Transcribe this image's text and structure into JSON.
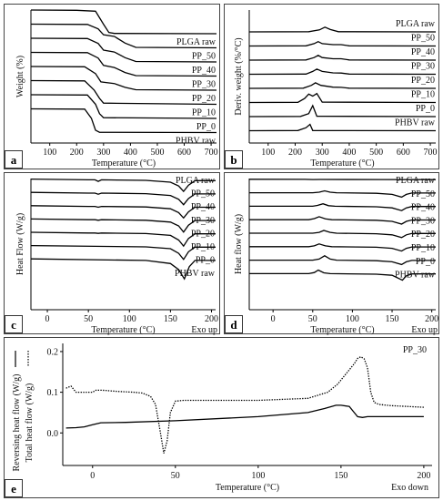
{
  "panels": {
    "a": "a",
    "b": "b",
    "c": "c",
    "d": "d",
    "e": "e"
  },
  "chart_data": [
    {
      "id": "a",
      "type": "line",
      "xlabel": "Temperature (°C)",
      "ylabel": "Weight (%)",
      "x_ticks": [
        100,
        200,
        300,
        400,
        500,
        600,
        700
      ],
      "xlim": [
        30,
        720
      ],
      "series": [
        {
          "name": "PLGA raw",
          "x": [
            30,
            200,
            270,
            300,
            320,
            340,
            720
          ],
          "y": [
            100,
            99,
            95,
            40,
            5,
            1,
            0
          ]
        },
        {
          "name": "PP_50",
          "x": [
            30,
            240,
            280,
            300,
            340,
            380,
            420,
            720
          ],
          "y": [
            100,
            99,
            80,
            55,
            48,
            20,
            2,
            0
          ]
        },
        {
          "name": "PP_40",
          "x": [
            30,
            240,
            280,
            300,
            340,
            380,
            420,
            720
          ],
          "y": [
            100,
            99,
            78,
            50,
            42,
            18,
            2,
            0
          ]
        },
        {
          "name": "PP_30",
          "x": [
            30,
            240,
            280,
            300,
            340,
            380,
            420,
            720
          ],
          "y": [
            100,
            99,
            76,
            45,
            36,
            15,
            2,
            0
          ]
        },
        {
          "name": "PP_20",
          "x": [
            30,
            230,
            270,
            290,
            340,
            380,
            420,
            720
          ],
          "y": [
            100,
            99,
            70,
            35,
            28,
            12,
            2,
            0
          ]
        },
        {
          "name": "PP_10",
          "x": [
            30,
            230,
            265,
            285,
            300,
            720
          ],
          "y": [
            100,
            99,
            60,
            25,
            5,
            0
          ]
        },
        {
          "name": "PP_0",
          "x": [
            30,
            240,
            270,
            285,
            300,
            720
          ],
          "y": [
            100,
            99,
            60,
            20,
            3,
            0
          ]
        },
        {
          "name": "PHBV raw",
          "x": [
            30,
            230,
            255,
            270,
            285,
            720
          ],
          "y": [
            100,
            99,
            60,
            10,
            1,
            0
          ]
        }
      ]
    },
    {
      "id": "b",
      "type": "line",
      "xlabel": "Temperature (°C)",
      "ylabel": "Deriv. weight (%/°C)",
      "x_ticks": [
        100,
        200,
        300,
        400,
        500,
        600,
        700
      ],
      "xlim": [
        30,
        720
      ],
      "series": [
        {
          "name": "PLGA raw",
          "x": [
            30,
            250,
            290,
            310,
            330,
            360,
            720
          ],
          "y": [
            0,
            0.1,
            1,
            2.4,
            1.2,
            0.1,
            0
          ]
        },
        {
          "name": "PP_50",
          "x": [
            30,
            240,
            270,
            285,
            300,
            340,
            370,
            400,
            720
          ],
          "y": [
            0,
            0.1,
            1.2,
            2.2,
            1.2,
            0.7,
            0.7,
            0.1,
            0
          ]
        },
        {
          "name": "PP_40",
          "x": [
            30,
            240,
            270,
            285,
            300,
            340,
            370,
            400,
            720
          ],
          "y": [
            0,
            0.1,
            1.3,
            2.4,
            1.3,
            0.7,
            0.7,
            0.1,
            0
          ]
        },
        {
          "name": "PP_30",
          "x": [
            30,
            240,
            265,
            280,
            300,
            340,
            370,
            400,
            720
          ],
          "y": [
            0,
            0.1,
            1.4,
            2.6,
            1.4,
            0.7,
            0.6,
            0.1,
            0
          ]
        },
        {
          "name": "PP_20",
          "x": [
            30,
            230,
            260,
            275,
            295,
            340,
            370,
            400,
            720
          ],
          "y": [
            0,
            0.1,
            1.5,
            2.8,
            1.5,
            0.6,
            0.5,
            0.1,
            0
          ]
        },
        {
          "name": "PP_10",
          "x": [
            30,
            210,
            235,
            250,
            265,
            280,
            300,
            720
          ],
          "y": [
            0,
            0.1,
            2,
            4.2,
            3.2,
            4.5,
            0.2,
            0
          ]
        },
        {
          "name": "PP_0",
          "x": [
            30,
            220,
            250,
            265,
            280,
            720
          ],
          "y": [
            0,
            0.1,
            1.5,
            5.5,
            0.2,
            0
          ]
        },
        {
          "name": "PHBV raw",
          "x": [
            30,
            210,
            240,
            255,
            265,
            720
          ],
          "y": [
            0,
            0.1,
            1.5,
            3.2,
            0.1,
            0
          ]
        }
      ]
    },
    {
      "id": "c",
      "type": "line",
      "xlabel": "Temperature (°C)",
      "ylabel": "Heat Flow (W/g)",
      "annotation": "Exo up",
      "x_ticks": [
        0,
        50,
        100,
        150,
        200
      ],
      "xlim": [
        -20,
        205
      ],
      "series": [
        {
          "name": "PLGA raw",
          "x": [
            -20,
            40,
            50,
            55,
            60,
            70,
            140,
            205
          ],
          "y": [
            0,
            -0.02,
            -0.08,
            -0.05,
            -0.02,
            -0.02,
            -0.05,
            -0.06
          ]
        },
        {
          "name": "PP_50",
          "x": [
            -20,
            50,
            58,
            62,
            66,
            120,
            150,
            160,
            166,
            172,
            180,
            205
          ],
          "y": [
            0,
            -0.05,
            -0.05,
            -0.15,
            -0.05,
            -0.08,
            -0.2,
            -0.45,
            -0.8,
            -0.4,
            -0.1,
            -0.1
          ]
        },
        {
          "name": "PP_40",
          "x": [
            -20,
            50,
            58,
            62,
            66,
            120,
            150,
            160,
            166,
            172,
            180,
            205
          ],
          "y": [
            0,
            -0.05,
            -0.05,
            -0.12,
            -0.05,
            -0.08,
            -0.2,
            -0.45,
            -0.8,
            -0.4,
            -0.1,
            -0.1
          ]
        },
        {
          "name": "PP_30",
          "x": [
            -20,
            50,
            58,
            62,
            66,
            120,
            150,
            160,
            166,
            172,
            180,
            205
          ],
          "y": [
            0,
            -0.05,
            -0.05,
            -0.1,
            -0.05,
            -0.08,
            -0.2,
            -0.45,
            -0.8,
            -0.4,
            -0.1,
            -0.1
          ]
        },
        {
          "name": "PP_20",
          "x": [
            -20,
            50,
            58,
            62,
            66,
            120,
            150,
            160,
            166,
            172,
            180,
            205
          ],
          "y": [
            0,
            -0.05,
            -0.05,
            -0.08,
            -0.05,
            -0.08,
            -0.2,
            -0.45,
            -0.85,
            -0.4,
            -0.1,
            -0.1
          ]
        },
        {
          "name": "PP_10",
          "x": [
            -20,
            50,
            58,
            62,
            66,
            120,
            150,
            160,
            166,
            172,
            180,
            205
          ],
          "y": [
            0,
            -0.05,
            -0.05,
            -0.07,
            -0.05,
            -0.08,
            -0.2,
            -0.5,
            -0.9,
            -0.4,
            -0.1,
            -0.1
          ]
        },
        {
          "name": "PP_0",
          "x": [
            -20,
            120,
            150,
            160,
            166,
            172,
            180,
            205
          ],
          "y": [
            0,
            -0.08,
            -0.2,
            -0.5,
            -0.9,
            -0.4,
            -0.1,
            -0.1
          ]
        },
        {
          "name": "PHBV raw",
          "x": [
            -20,
            120,
            150,
            160,
            167,
            173,
            180,
            205
          ],
          "y": [
            0,
            -0.1,
            -0.3,
            -0.7,
            -1.3,
            -0.5,
            -0.1,
            -0.1
          ]
        }
      ]
    },
    {
      "id": "d",
      "type": "line",
      "xlabel": "Temperature (°C)",
      "ylabel": "Heat flow (W/g)",
      "annotation": "Exo up",
      "x_ticks": [
        0,
        50,
        100,
        150,
        200
      ],
      "xlim": [
        -30,
        205
      ],
      "series": [
        {
          "name": "PLGA raw",
          "x": [
            -30,
            40,
            50,
            60,
            140,
            205
          ],
          "y": [
            0,
            -0.02,
            -0.05,
            -0.03,
            -0.05,
            -0.06
          ]
        },
        {
          "name": "PP_50",
          "x": [
            -30,
            50,
            58,
            65,
            72,
            80,
            130,
            150,
            162,
            168,
            175,
            205
          ],
          "y": [
            0,
            0,
            0.1,
            0.35,
            0.1,
            0,
            -0.1,
            -0.3,
            -0.8,
            -0.3,
            -0.05,
            -0.05
          ]
        },
        {
          "name": "PP_40",
          "x": [
            -30,
            50,
            56,
            63,
            70,
            78,
            130,
            150,
            162,
            168,
            175,
            205
          ],
          "y": [
            0,
            0,
            0.15,
            0.45,
            0.1,
            0,
            -0.1,
            -0.3,
            -0.8,
            -0.3,
            -0.05,
            -0.05
          ]
        },
        {
          "name": "PP_30",
          "x": [
            -30,
            45,
            52,
            58,
            66,
            74,
            130,
            150,
            162,
            168,
            175,
            205
          ],
          "y": [
            0,
            0,
            0.2,
            0.55,
            0.15,
            0,
            -0.1,
            -0.3,
            -0.8,
            -0.3,
            -0.05,
            -0.05
          ]
        },
        {
          "name": "PP_20",
          "x": [
            -30,
            50,
            58,
            64,
            72,
            80,
            130,
            150,
            162,
            168,
            175,
            205
          ],
          "y": [
            0,
            0,
            0.15,
            0.5,
            0.15,
            0,
            -0.1,
            -0.3,
            -0.8,
            -0.3,
            -0.05,
            -0.05
          ]
        },
        {
          "name": "PP_10",
          "x": [
            -30,
            45,
            52,
            58,
            66,
            74,
            130,
            150,
            162,
            168,
            175,
            205
          ],
          "y": [
            0,
            0,
            0.15,
            0.5,
            0.15,
            0,
            -0.1,
            -0.3,
            -0.8,
            -0.3,
            -0.05,
            -0.05
          ]
        },
        {
          "name": "PP_0",
          "x": [
            -30,
            50,
            58,
            65,
            72,
            80,
            130,
            150,
            162,
            168,
            175,
            205
          ],
          "y": [
            0,
            0,
            0.2,
            0.8,
            0.2,
            0,
            -0.1,
            -0.3,
            -0.8,
            -0.3,
            -0.05,
            -0.05
          ]
        },
        {
          "name": "PHBV raw",
          "x": [
            -30,
            45,
            52,
            57,
            64,
            72,
            130,
            150,
            163,
            168,
            175,
            205
          ],
          "y": [
            0,
            0,
            0.2,
            0.65,
            0.15,
            0,
            -0.1,
            -0.3,
            -1.2,
            -0.4,
            -0.05,
            -0.05
          ]
        }
      ]
    },
    {
      "id": "e",
      "type": "line",
      "title": "PP_30",
      "xlabel": "Temperature (°C)",
      "ylabel_solid": "Reversing heat flow (W/g)",
      "ylabel_dotted": "Total heat flow (W/g)",
      "annotation": "Exo down",
      "x_ticks": [
        0,
        50,
        100,
        150,
        200
      ],
      "y_ticks": [
        0.0,
        0.1,
        0.2
      ],
      "xlim": [
        -18,
        205
      ],
      "ylim": [
        -0.08,
        0.22
      ],
      "series": [
        {
          "name": "Total heat flow",
          "style": "dotted",
          "x": [
            -16,
            -13,
            -10,
            -5,
            0,
            2,
            6,
            15,
            25,
            30,
            35,
            38,
            41,
            43,
            45,
            47,
            50,
            55,
            60,
            100,
            130,
            142,
            148,
            152,
            155,
            158,
            160,
            162,
            164,
            166,
            168,
            170,
            173,
            180,
            190,
            200
          ],
          "y": [
            0.11,
            0.115,
            0.1,
            0.1,
            0.1,
            0.105,
            0.105,
            0.102,
            0.1,
            0.098,
            0.09,
            0.07,
            0.0,
            -0.05,
            -0.02,
            0.05,
            0.078,
            0.08,
            0.08,
            0.08,
            0.085,
            0.1,
            0.12,
            0.14,
            0.155,
            0.17,
            0.183,
            0.187,
            0.182,
            0.16,
            0.1,
            0.075,
            0.07,
            0.067,
            0.065,
            0.063
          ]
        },
        {
          "name": "Reversing heat flow",
          "style": "solid",
          "x": [
            -16,
            -10,
            -5,
            0,
            5,
            20,
            50,
            100,
            130,
            140,
            147,
            150,
            155,
            158,
            160,
            163,
            166,
            170,
            180,
            190,
            200
          ],
          "y": [
            0.012,
            0.013,
            0.015,
            0.02,
            0.025,
            0.026,
            0.03,
            0.04,
            0.05,
            0.06,
            0.068,
            0.068,
            0.065,
            0.05,
            0.04,
            0.038,
            0.04,
            0.04,
            0.04,
            0.04,
            0.04
          ]
        }
      ]
    }
  ]
}
